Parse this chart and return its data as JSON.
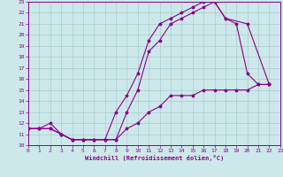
{
  "title": "",
  "xlabel": "Windchill (Refroidissement éolien,°C)",
  "xlim": [
    0,
    23
  ],
  "ylim": [
    10,
    23
  ],
  "xticks": [
    0,
    1,
    2,
    3,
    4,
    5,
    6,
    7,
    8,
    9,
    10,
    11,
    12,
    13,
    14,
    15,
    16,
    17,
    18,
    19,
    20,
    21,
    22,
    23
  ],
  "yticks": [
    10,
    11,
    12,
    13,
    14,
    15,
    16,
    17,
    18,
    19,
    20,
    21,
    22,
    23
  ],
  "background_color": "#cde8ea",
  "line_color": "#880088",
  "grid_color": "#aacccc",
  "line1_x": [
    0,
    1,
    2,
    3,
    4,
    5,
    6,
    7,
    8,
    9,
    10,
    11,
    12,
    13,
    14,
    15,
    16,
    17,
    18,
    19,
    20,
    21,
    22
  ],
  "line1_y": [
    11.5,
    11.5,
    11.5,
    11.0,
    10.5,
    10.5,
    10.5,
    10.5,
    10.5,
    13.0,
    15.0,
    18.5,
    19.5,
    21.0,
    21.5,
    22.0,
    22.5,
    23.0,
    21.5,
    21.0,
    16.5,
    15.5,
    15.5
  ],
  "line2_x": [
    0,
    1,
    2,
    3,
    4,
    5,
    6,
    7,
    8,
    9,
    10,
    11,
    12,
    13,
    14,
    15,
    16,
    17,
    18,
    20,
    22
  ],
  "line2_y": [
    11.5,
    11.5,
    12.0,
    11.0,
    10.5,
    10.5,
    10.5,
    10.5,
    13.0,
    14.5,
    16.5,
    19.5,
    21.0,
    21.5,
    22.0,
    22.5,
    23.0,
    23.0,
    21.5,
    21.0,
    15.5
  ],
  "line3_x": [
    0,
    1,
    2,
    3,
    4,
    5,
    6,
    7,
    8,
    9,
    10,
    11,
    12,
    13,
    14,
    15,
    16,
    17,
    18,
    19,
    20,
    21,
    22
  ],
  "line3_y": [
    11.5,
    11.5,
    11.5,
    11.0,
    10.5,
    10.5,
    10.5,
    10.5,
    10.5,
    11.5,
    12.0,
    13.0,
    13.5,
    14.5,
    14.5,
    14.5,
    15.0,
    15.0,
    15.0,
    15.0,
    15.0,
    15.5,
    15.5
  ]
}
